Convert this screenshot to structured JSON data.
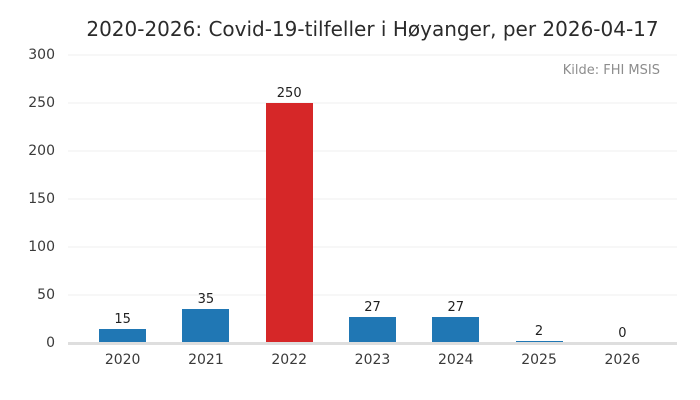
{
  "chart_data": {
    "type": "bar",
    "title": "2020-2026: Covid-19-tilfeller i Høyanger, per 2026-04-17",
    "source": "Kilde: FHI MSIS",
    "categories": [
      "2020",
      "2021",
      "2022",
      "2023",
      "2024",
      "2025",
      "2026"
    ],
    "values": [
      15,
      35,
      250,
      27,
      27,
      2,
      0
    ],
    "bar_colors": [
      "#2077b4",
      "#2077b4",
      "#d62728",
      "#2077b4",
      "#2077b4",
      "#2077b4",
      "#2077b4"
    ],
    "yticks": [
      0,
      50,
      100,
      150,
      200,
      250,
      300
    ],
    "ylim": [
      0,
      300
    ],
    "xlabel": "",
    "ylabel": "",
    "grid": "horizontal",
    "legend": "none",
    "colors": {
      "bar_default": "#2077b4",
      "bar_highlight": "#d62728",
      "gridline": "#efefef",
      "baseline": "#dedede",
      "title_text": "#2b2b2b",
      "tick_text": "#3a3a3a",
      "value_text": "#1f1f1f",
      "source_text": "#8d8d8d",
      "background": "#ffffff"
    }
  }
}
